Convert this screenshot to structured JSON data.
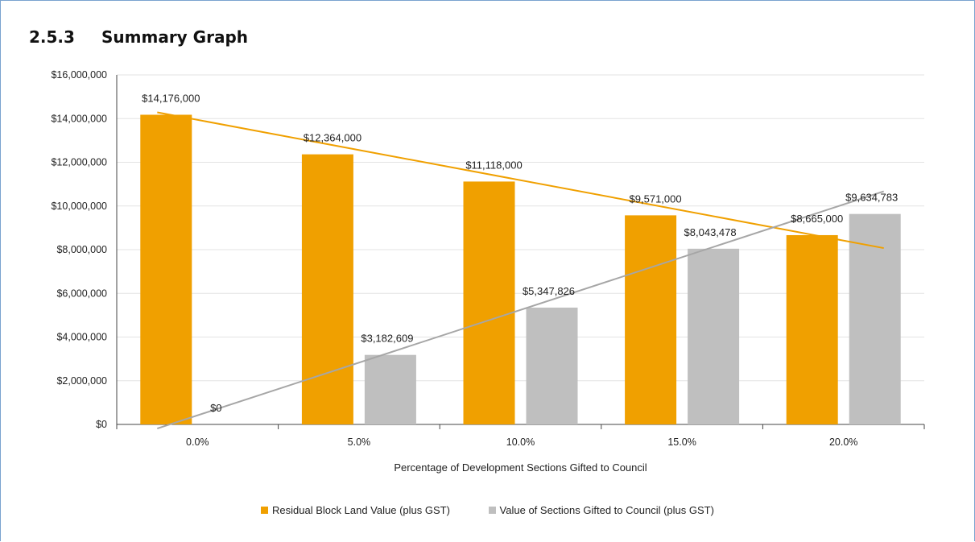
{
  "section": {
    "number": "2.5.3",
    "title": "Summary Graph"
  },
  "chart_data": {
    "type": "bar",
    "categories": [
      "0.0%",
      "5.0%",
      "10.0%",
      "15.0%",
      "20.0%"
    ],
    "series": [
      {
        "name": "Residual Block Land Value (plus GST)",
        "color": "#f0a000",
        "values": [
          14176000,
          12364000,
          11118000,
          9571000,
          8665000
        ],
        "labels": [
          "$14,176,000",
          "$12,364,000",
          "$11,118,000",
          "$9,571,000",
          "$8,665,000"
        ]
      },
      {
        "name": "Value of Sections Gifted to Council (plus GST)",
        "color": "#bfbfbf",
        "values": [
          0,
          3182609,
          5347826,
          8043478,
          9634783
        ],
        "labels": [
          "$0",
          "$3,182,609",
          "$5,347,826",
          "$8,043,478",
          "$9,634,783"
        ]
      }
    ],
    "trendlines": [
      {
        "series": 0,
        "color": "#f0a000",
        "type": "linear"
      },
      {
        "series": 1,
        "color": "#a6a6a6",
        "type": "linear"
      }
    ],
    "xlabel": "Percentage of Development Sections Gifted to Council",
    "ylabel": "",
    "ylim": [
      0,
      16000000
    ],
    "yticks": [
      0,
      2000000,
      4000000,
      6000000,
      8000000,
      10000000,
      12000000,
      14000000,
      16000000
    ],
    "ytick_labels": [
      "$0",
      "$2,000,000",
      "$4,000,000",
      "$6,000,000",
      "$8,000,000",
      "$10,000,000",
      "$12,000,000",
      "$14,000,000",
      "$16,000,000"
    ],
    "grid": true,
    "legend_position": "bottom"
  }
}
